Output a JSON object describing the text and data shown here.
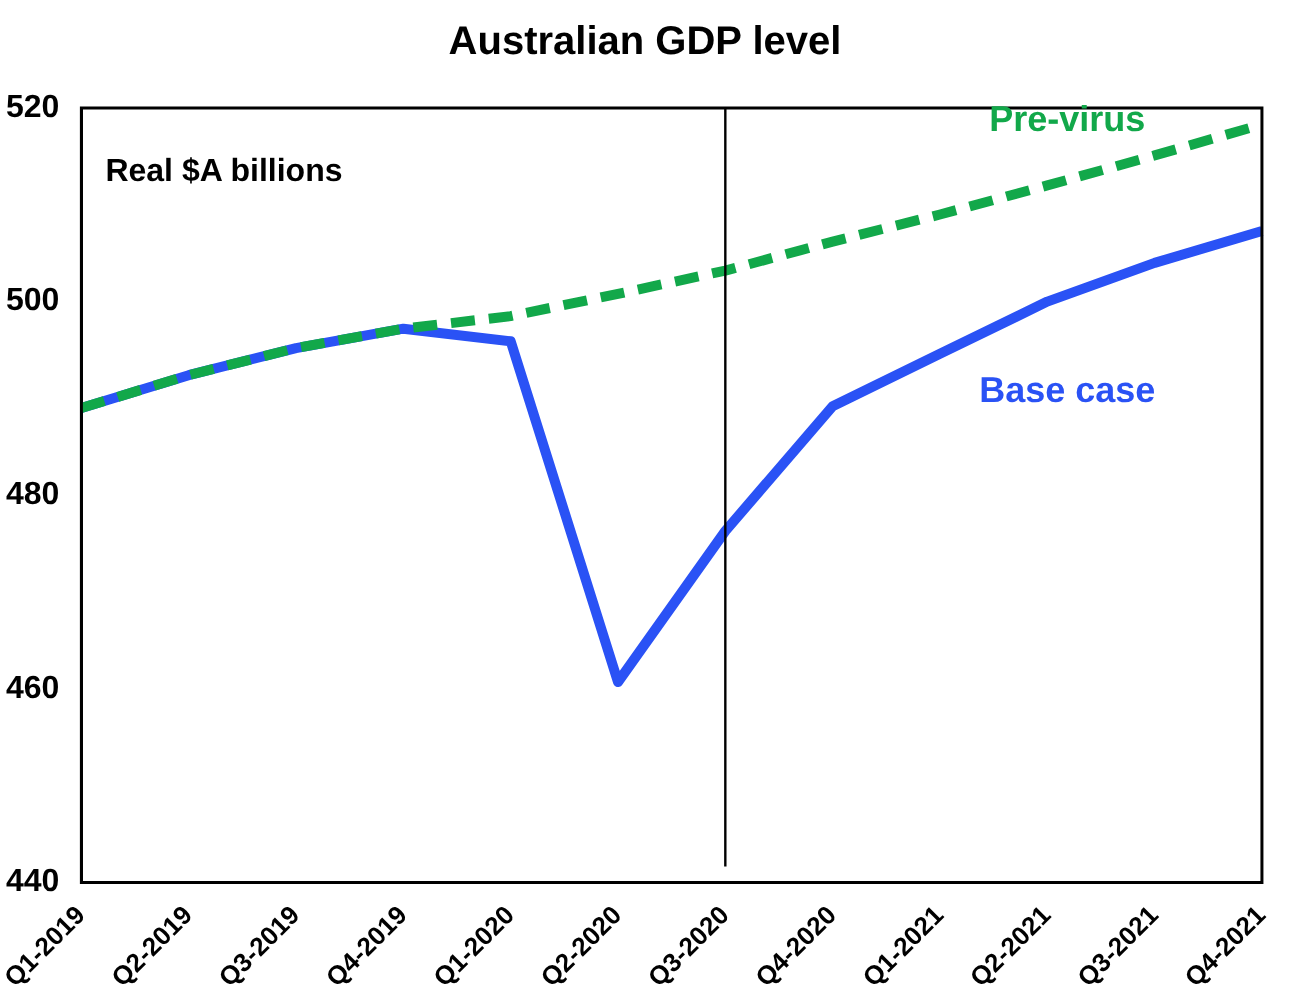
{
  "chart_data": {
    "type": "line",
    "title": "Australian GDP level",
    "categories": [
      "Q1-2019",
      "Q2-2019",
      "Q3-2019",
      "Q4-2019",
      "Q1-2020",
      "Q2-2020",
      "Q3-2020",
      "Q4-2020",
      "Q1-2021",
      "Q2-2021",
      "Q3-2021",
      "Q4-2021"
    ],
    "series": [
      {
        "name": "Base case",
        "color": "#2a52f5",
        "line_style": "solid",
        "values": [
          489.0,
          492.4,
          495.2,
          497.2,
          495.9,
          460.7,
          476.3,
          489.2,
          494.6,
          500.0,
          504.0,
          507.3
        ]
      },
      {
        "name": "Pre-virus",
        "color": "#12a84a",
        "line_style": "dashed",
        "values": [
          489.0,
          492.4,
          495.2,
          497.2,
          498.5,
          500.8,
          503.2,
          506.2,
          509.0,
          512.0,
          515.1,
          518.3
        ]
      }
    ],
    "ylim": [
      440,
      520
    ],
    "yticks": [
      440,
      460,
      480,
      500,
      520
    ],
    "ref_lines": [
      {
        "axis": "x",
        "value": "Q3-2020",
        "color": "#000000"
      }
    ],
    "annotations": [
      "Real $A billions"
    ],
    "grid": false,
    "legend": false,
    "marker": "none"
  }
}
